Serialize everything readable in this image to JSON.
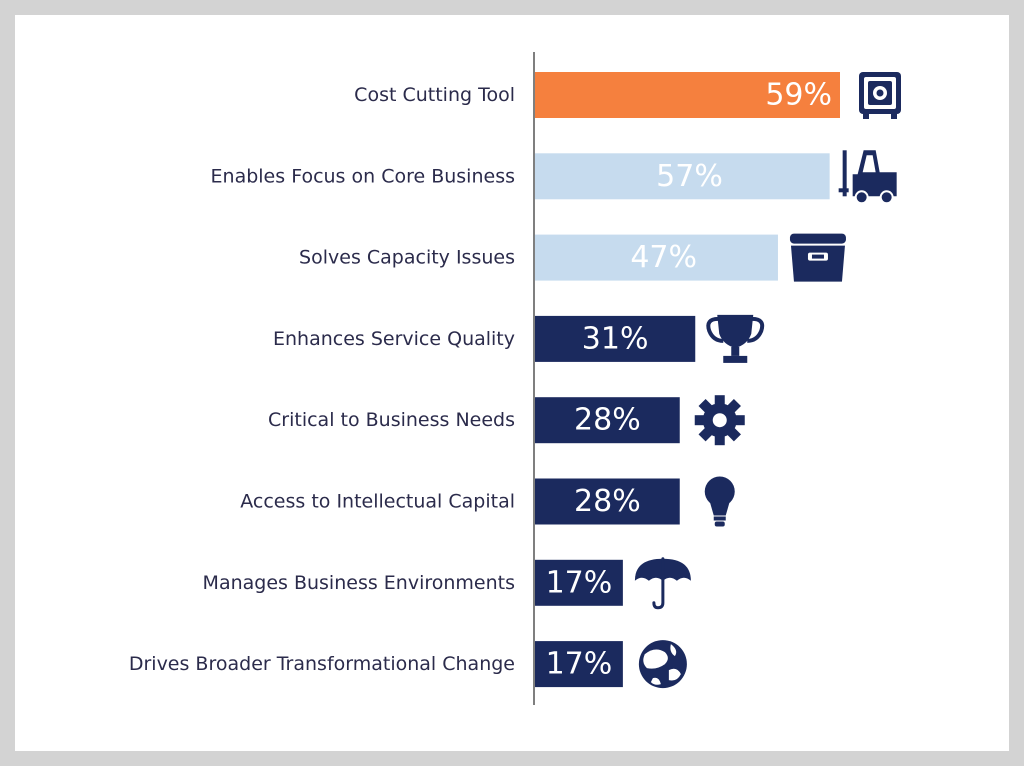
{
  "chart_data": {
    "type": "bar",
    "orientation": "horizontal",
    "categories": [
      "Cost Cutting Tool",
      "Enables Focus on Core Business",
      "Solves Capacity Issues",
      "Enhances Service Quality",
      "Critical to Business Needs",
      "Access to Intellectual Capital",
      "Manages Business Environments",
      "Drives Broader Transformational Change"
    ],
    "values": [
      59,
      57,
      47,
      31,
      28,
      28,
      17,
      17
    ],
    "value_labels": [
      "59%",
      "57%",
      "47%",
      "31%",
      "28%",
      "28%",
      "17%",
      "17%"
    ],
    "bar_colors": [
      "#f5803e",
      "#c6dbee",
      "#c6dbee",
      "#1b2a5e",
      "#1b2a5e",
      "#1b2a5e",
      "#1b2a5e",
      "#1b2a5e"
    ],
    "label_colors": [
      "#ffffff",
      "#ffffff",
      "#ffffff",
      "#ffffff",
      "#ffffff",
      "#ffffff",
      "#ffffff",
      "#ffffff"
    ],
    "icons": [
      "safe-icon",
      "forklift-icon",
      "storage-bin-icon",
      "trophy-icon",
      "gear-icon",
      "lightbulb-icon",
      "umbrella-icon",
      "globe-icon"
    ],
    "icon_color": "#1b2a5e",
    "title": "",
    "xlabel": "",
    "ylabel": "",
    "xlim": [
      0,
      60
    ],
    "grid": false,
    "legend": "none"
  }
}
